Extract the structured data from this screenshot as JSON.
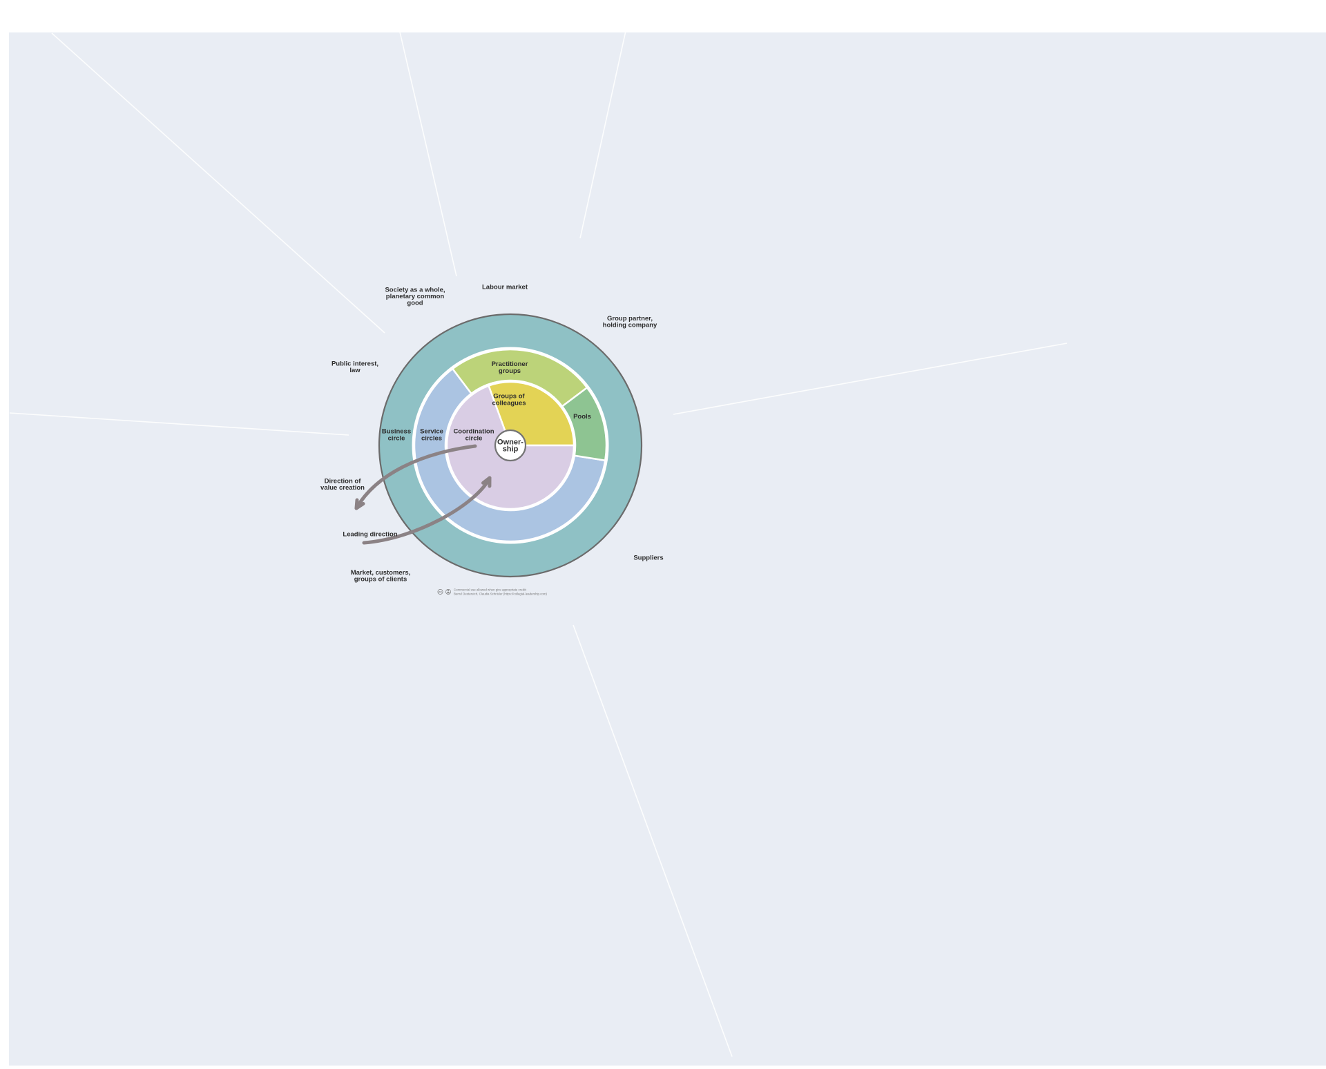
{
  "board": {
    "background": "#e9edf4",
    "page_background": "#ffffff"
  },
  "colors": {
    "business_ring": "#8fc1c5",
    "service_ring": "#abc4e2",
    "coordination_segment": "#d9cde4",
    "colleagues_segment": "#e3d355",
    "practitioner_segment": "#bcd379",
    "pools_segment": "#8ec492",
    "outer_border": "#6b6b6b",
    "ownership_border": "#757575",
    "arrow": "#8b8285",
    "ray": "#ffffff"
  },
  "rings": {
    "business": [
      "Business",
      "circle"
    ],
    "service": [
      "Service",
      "circles"
    ],
    "coordination": [
      "Coordination",
      "circle"
    ],
    "colleagues": [
      "Groups of",
      "colleagues"
    ],
    "practitioner": [
      "Practitioner",
      "groups"
    ],
    "pools": [
      "Pools"
    ],
    "ownership": [
      "Owner-",
      "ship"
    ]
  },
  "environment": {
    "society": [
      "Society as a whole,",
      "planetary common",
      "good"
    ],
    "labour_market": [
      "Labour market"
    ],
    "group_partner": [
      "Group partner,",
      "holding company"
    ],
    "public_interest": [
      "Public interest,",
      "law"
    ],
    "suppliers": [
      "Suppliers"
    ],
    "market_customers": [
      "Market, customers,",
      "groups of clients"
    ]
  },
  "annotations": {
    "value_creation": [
      "Direction of",
      "value creation"
    ],
    "leading_direction": [
      "Leading direction"
    ]
  },
  "attribution": {
    "cc_icon": "cc",
    "line1": "Commercial use allowed when give appropriate credit:",
    "line2": "Bernd Oestereich, Claudia Schröder (https://collegial-leadership.com)"
  }
}
